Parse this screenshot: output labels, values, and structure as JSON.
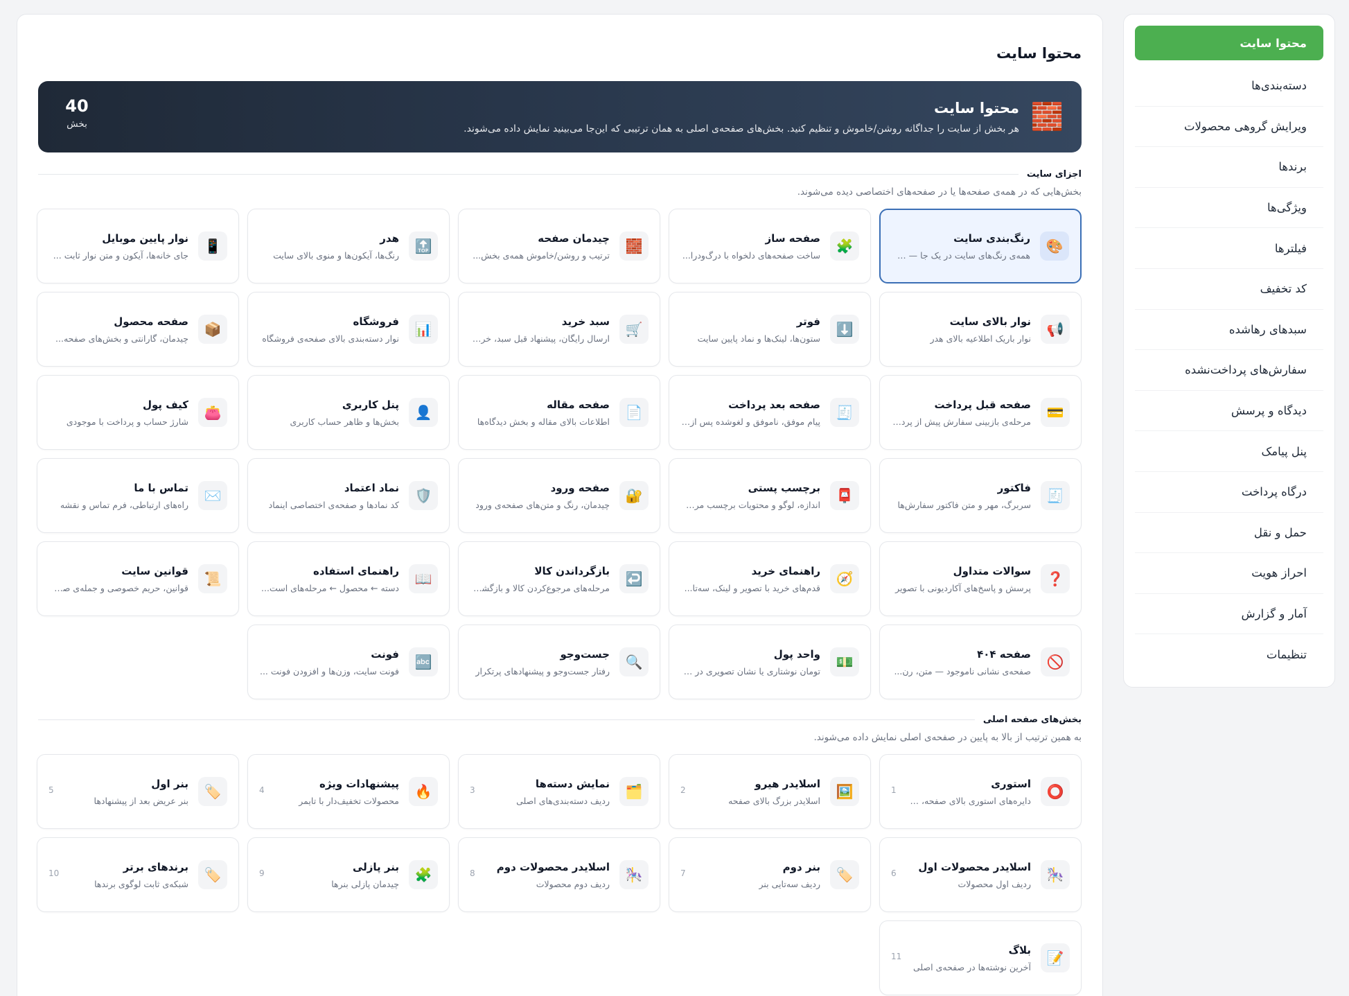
{
  "sidebar": {
    "items": [
      {
        "label": "محتوا سایت",
        "active": true
      },
      {
        "label": "دسته‌بندی‌ها"
      },
      {
        "label": "ویرایش گروهی محصولات"
      },
      {
        "label": "برندها"
      },
      {
        "label": "ویژگی‌ها"
      },
      {
        "label": "فیلترها"
      },
      {
        "label": "کد تخفیف"
      },
      {
        "label": "سبدهای رهاشده"
      },
      {
        "label": "سفارش‌های پرداخت‌نشده"
      },
      {
        "label": "دیدگاه و پرسش"
      },
      {
        "label": "پنل پیامک"
      },
      {
        "label": "درگاه پرداخت"
      },
      {
        "label": "حمل و نقل"
      },
      {
        "label": "احراز هویت"
      },
      {
        "label": "آمار و گزارش"
      },
      {
        "label": "تنظیمات"
      }
    ]
  },
  "main": {
    "title": "محتوا سایت",
    "banner": {
      "icon": "🧱",
      "title": "محتوا سایت",
      "description": "هر بخش از سایت را جداگانه روشن/خاموش و تنظیم کنید. بخش‌های صفحه‌ی اصلی به همان ترتیبی که این‌جا می‌بینید نمایش داده می‌شوند.",
      "count": "40",
      "count_unit": "بخش"
    },
    "site_parts": {
      "label": "اجزای سایت",
      "description": "بخش‌هایی که در همه‌ی صفحه‌ها یا در صفحه‌های اختصاصی دیده می‌شوند.",
      "cards": [
        {
          "icon": "🎨",
          "title": "رنگ‌بندی سایت",
          "desc": "همه‌ی رنگ‌های سایت در یک جا — پ..."
        },
        {
          "icon": "🧩",
          "title": "صفحه ساز",
          "desc": "ساخت صفحه‌های دلخواه با درگ‌ودرا..."
        },
        {
          "icon": "🧱",
          "title": "چیدمان صفحه",
          "desc": "ترتیب و روشن/خاموش همه‌ی بخش..."
        },
        {
          "icon": "🔝",
          "title": "هدر",
          "desc": "رنگ‌ها، آیکون‌ها و منوی بالای سایت"
        },
        {
          "icon": "📱",
          "title": "نوار پایین موبایل",
          "desc": "جای خانه‌ها، آیکون و متن نوار ثابت ..."
        },
        {
          "icon": "📢",
          "title": "نوار بالای سایت",
          "desc": "نوار باریک اطلاعیه بالای هدر"
        },
        {
          "icon": "⬇️",
          "title": "فوتر",
          "desc": "ستون‌ها، لینک‌ها و نماد پایین سایت"
        },
        {
          "icon": "🛒",
          "title": "سبد خرید",
          "desc": "ارسال رایگان، پیشنهاد قبل سبد، خری..."
        },
        {
          "icon": "📊",
          "title": "فروشگاه",
          "desc": "نوار دسته‌بندی بالای صفحه‌ی فروشگاه"
        },
        {
          "icon": "📦",
          "title": "صفحه محصول",
          "desc": "چیدمان، گارانتی و بخش‌های صفحه..."
        },
        {
          "icon": "💳",
          "title": "صفحه قبل پرداخت",
          "desc": "مرحله‌ی بازبینی سفارش پیش از پردا..."
        },
        {
          "icon": "🧾",
          "title": "صفحه بعد پرداخت",
          "desc": "پیام موفق، ناموفق و لغوشده پس از ..."
        },
        {
          "icon": "📄",
          "title": "صفحه مقاله",
          "desc": "اطلاعات بالای مقاله و بخش دیدگاه‌ها"
        },
        {
          "icon": "👤",
          "title": "پنل کاربری",
          "desc": "بخش‌ها و ظاهر حساب کاربری"
        },
        {
          "icon": "👛",
          "title": "کیف پول",
          "desc": "شارژ حساب و پرداخت با موجودی"
        },
        {
          "icon": "🧾",
          "title": "فاکتور",
          "desc": "سربرگ، مهر و متن فاکتور سفارش‌ها"
        },
        {
          "icon": "📮",
          "title": "برچسب پستی",
          "desc": "اندازه، لوگو و محتویات برچسب مرسوله"
        },
        {
          "icon": "🔐",
          "title": "صفحه ورود",
          "desc": "چیدمان، رنگ و متن‌های صفحه‌ی ورود"
        },
        {
          "icon": "🛡️",
          "title": "نماد اعتماد",
          "desc": "کد نمادها و صفحه‌ی اختصاصی اینماد"
        },
        {
          "icon": "✉️",
          "title": "تماس با ما",
          "desc": "راه‌های ارتباطی، فرم تماس و نقشه"
        },
        {
          "icon": "❓",
          "title": "سوالات متداول",
          "desc": "پرسش و پاسخ‌های آکاردیونی با تصویر"
        },
        {
          "icon": "🧭",
          "title": "راهنمای خرید",
          "desc": "قدم‌های خرید با تصویر و لینک، سه‌تا..."
        },
        {
          "icon": "↩️",
          "title": "بازگرداندن کالا",
          "desc": "مرحله‌های مرجوع‌کردن کالا و بازگشت..."
        },
        {
          "icon": "📖",
          "title": "راهنمای استفاده",
          "desc": "دسته ← محصول ← مرحله‌های است..."
        },
        {
          "icon": "📜",
          "title": "قوانین سایت",
          "desc": "قوانین، حریم خصوصی و جمله‌ی صف..."
        },
        {
          "icon": "🚫",
          "title": "صفحه ۴۰۴",
          "desc": "صفحه‌ی نشانی ناموجود — متن، رن..."
        },
        {
          "icon": "💵",
          "title": "واحد پول",
          "desc": "تومان نوشتاری یا نشان تصویری در ک..."
        },
        {
          "icon": "🔍",
          "title": "جست‌وجو",
          "desc": "رفتار جست‌وجو و پیشنهادهای پرتکرار"
        },
        {
          "icon": "🔤",
          "title": "فونت",
          "desc": "فونت سایت، وزن‌ها و افزودن فونت ..."
        }
      ]
    },
    "home_sections": {
      "label": "بخش‌های صفحه اصلی",
      "description": "به همین ترتیب از بالا به پایین در صفحه‌ی اصلی نمایش داده می‌شوند.",
      "cards": [
        {
          "icon": "⭕",
          "title": "استوری",
          "desc": "دایره‌های استوری بالای صفحه، با...",
          "num": "1"
        },
        {
          "icon": "🖼️",
          "title": "اسلایدر هیرو",
          "desc": "اسلایدر بزرگ بالای صفحه",
          "num": "2"
        },
        {
          "icon": "🗂️",
          "title": "نمایش دسته‌ها",
          "desc": "ردیف دسته‌بندی‌های اصلی",
          "num": "3"
        },
        {
          "icon": "🔥",
          "title": "پیشنهادات ویژه",
          "desc": "محصولات تخفیف‌دار با تایمر",
          "num": "4"
        },
        {
          "icon": "🏷️",
          "title": "بنر اول",
          "desc": "بنر عریض بعد از پیشنهادها",
          "num": "5"
        },
        {
          "icon": "🎠",
          "title": "اسلایدر محصولات اول",
          "desc": "ردیف اول محصولات",
          "num": "6"
        },
        {
          "icon": "🏷️",
          "title": "بنر دوم",
          "desc": "ردیف سه‌تایی بنر",
          "num": "7"
        },
        {
          "icon": "🎠",
          "title": "اسلایدر محصولات دوم",
          "desc": "ردیف دوم محصولات",
          "num": "8"
        },
        {
          "icon": "🧩",
          "title": "بنر پازلی",
          "desc": "چیدمان پازلی بنرها",
          "num": "9"
        },
        {
          "icon": "🏷️",
          "title": "برندهای برتر",
          "desc": "شبکه‌ی ثابت لوگوی برندها",
          "num": "10"
        },
        {
          "icon": "📝",
          "title": "بلاگ",
          "desc": "آخرین نوشته‌ها در صفحه‌ی اصلی",
          "num": "11"
        }
      ]
    }
  }
}
